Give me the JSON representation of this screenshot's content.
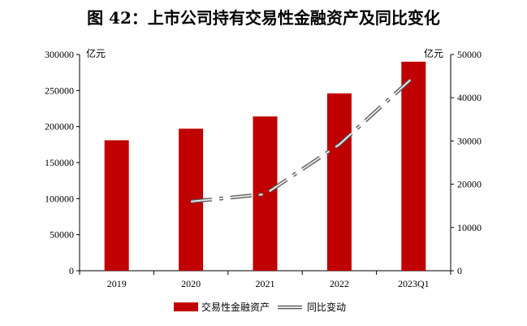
{
  "chart_data": {
    "type": "bar",
    "title": "图 42：上市公司持有交易性金融资产及同比变化",
    "left_unit": "亿元",
    "right_unit": "亿元",
    "categories": [
      "2019",
      "2020",
      "2021",
      "2022",
      "2023Q1"
    ],
    "left_ticks": [
      "0",
      "50000",
      "100000",
      "150000",
      "200000",
      "250000",
      "300000"
    ],
    "right_ticks": [
      "0",
      "10000",
      "20000",
      "30000",
      "40000",
      "50000"
    ],
    "ylim_left": [
      0,
      300000
    ],
    "ylim_right": [
      0,
      50000
    ],
    "series": [
      {
        "name": "交易性金融资产",
        "axis": "left",
        "type": "bar",
        "color": "#c00000",
        "values": [
          181000,
          197000,
          214000,
          246000,
          290000
        ]
      },
      {
        "name": "同比变动",
        "axis": "right",
        "type": "line",
        "style": "dash-dot",
        "values": [
          null,
          16000,
          17700,
          29200,
          44800
        ]
      }
    ],
    "legend_position": "bottom"
  }
}
